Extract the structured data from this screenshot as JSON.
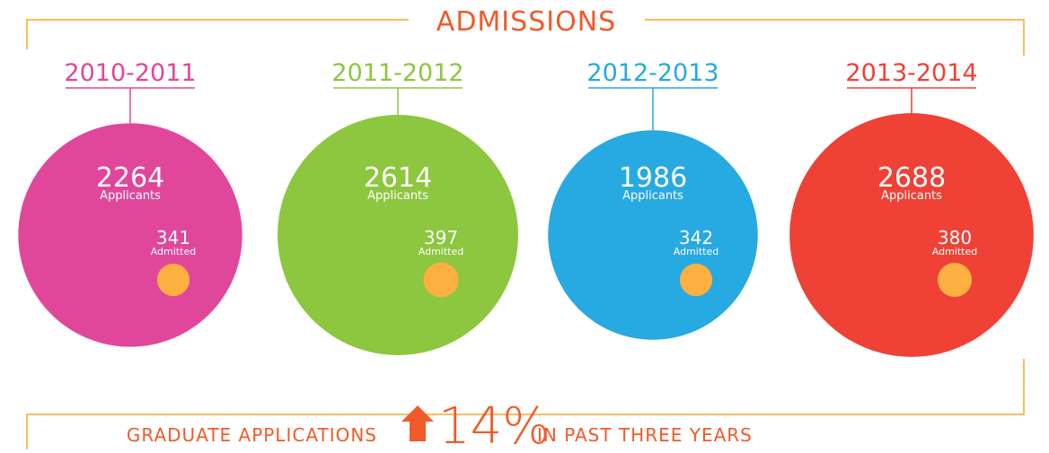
{
  "chart_data": {
    "type": "bubble",
    "title": "ADMISSIONS",
    "categories": [
      "2010-2011",
      "2011-2012",
      "2012-2013",
      "2013-2014"
    ],
    "category_colors": [
      "#e0479b",
      "#8dc63f",
      "#27a9e1",
      "#ef4136"
    ],
    "series": [
      {
        "name": "Applicants",
        "values": [
          2264,
          2614,
          1986,
          2688
        ]
      },
      {
        "name": "Admitted",
        "color": "#fbb040",
        "values": [
          341,
          397,
          342,
          380
        ]
      }
    ],
    "footer": {
      "prefix": "GRADUATE APPLICATIONS",
      "value": 14,
      "value_label": "14%",
      "suffix": "IN PAST THREE YEARS"
    }
  }
}
